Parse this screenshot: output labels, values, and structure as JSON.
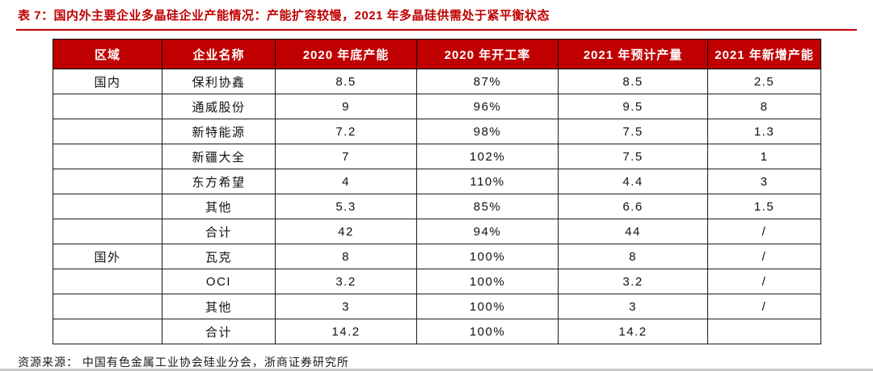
{
  "page": {
    "title": "表 7：国内外主要企业多晶硅企业产能情况：产能扩容较慢，2021 年多晶硅供需处于紧平衡状态",
    "source_note": "资源来源： 中国有色金属工业协会硅业分会，浙商证券研究所"
  },
  "colors": {
    "accent_red": "#c00000",
    "header_text": "#ffffff",
    "body_text": "#111111",
    "bottom_rule": "#c9c9c9"
  },
  "chart_data": {
    "type": "table",
    "title": "国内外主要企业多晶硅企业产能情况",
    "columns": [
      "区域",
      "企业名称",
      "2020 年底产能",
      "2020 年开工率",
      "2021 年预计产量",
      "2021 年新增产能"
    ],
    "rows": [
      [
        "国内",
        "保利协鑫",
        "8.5",
        "87%",
        "8.5",
        "2.5"
      ],
      [
        "",
        "通威股份",
        "9",
        "96%",
        "9.5",
        "8"
      ],
      [
        "",
        "新特能源",
        "7.2",
        "98%",
        "7.5",
        "1.3"
      ],
      [
        "",
        "新疆大全",
        "7",
        "102%",
        "7.5",
        "1"
      ],
      [
        "",
        "东方希望",
        "4",
        "110%",
        "4.4",
        "3"
      ],
      [
        "",
        "其他",
        "5.3",
        "85%",
        "6.6",
        "1.5"
      ],
      [
        "",
        "合计",
        "42",
        "94%",
        "44",
        "/"
      ],
      [
        "国外",
        "瓦克",
        "8",
        "100%",
        "8",
        "/"
      ],
      [
        "",
        "OCI",
        "3.2",
        "100%",
        "3.2",
        "/"
      ],
      [
        "",
        "其他",
        "3",
        "100%",
        "3",
        "/"
      ],
      [
        "",
        "合计",
        "14.2",
        "100%",
        "14.2",
        ""
      ]
    ]
  }
}
